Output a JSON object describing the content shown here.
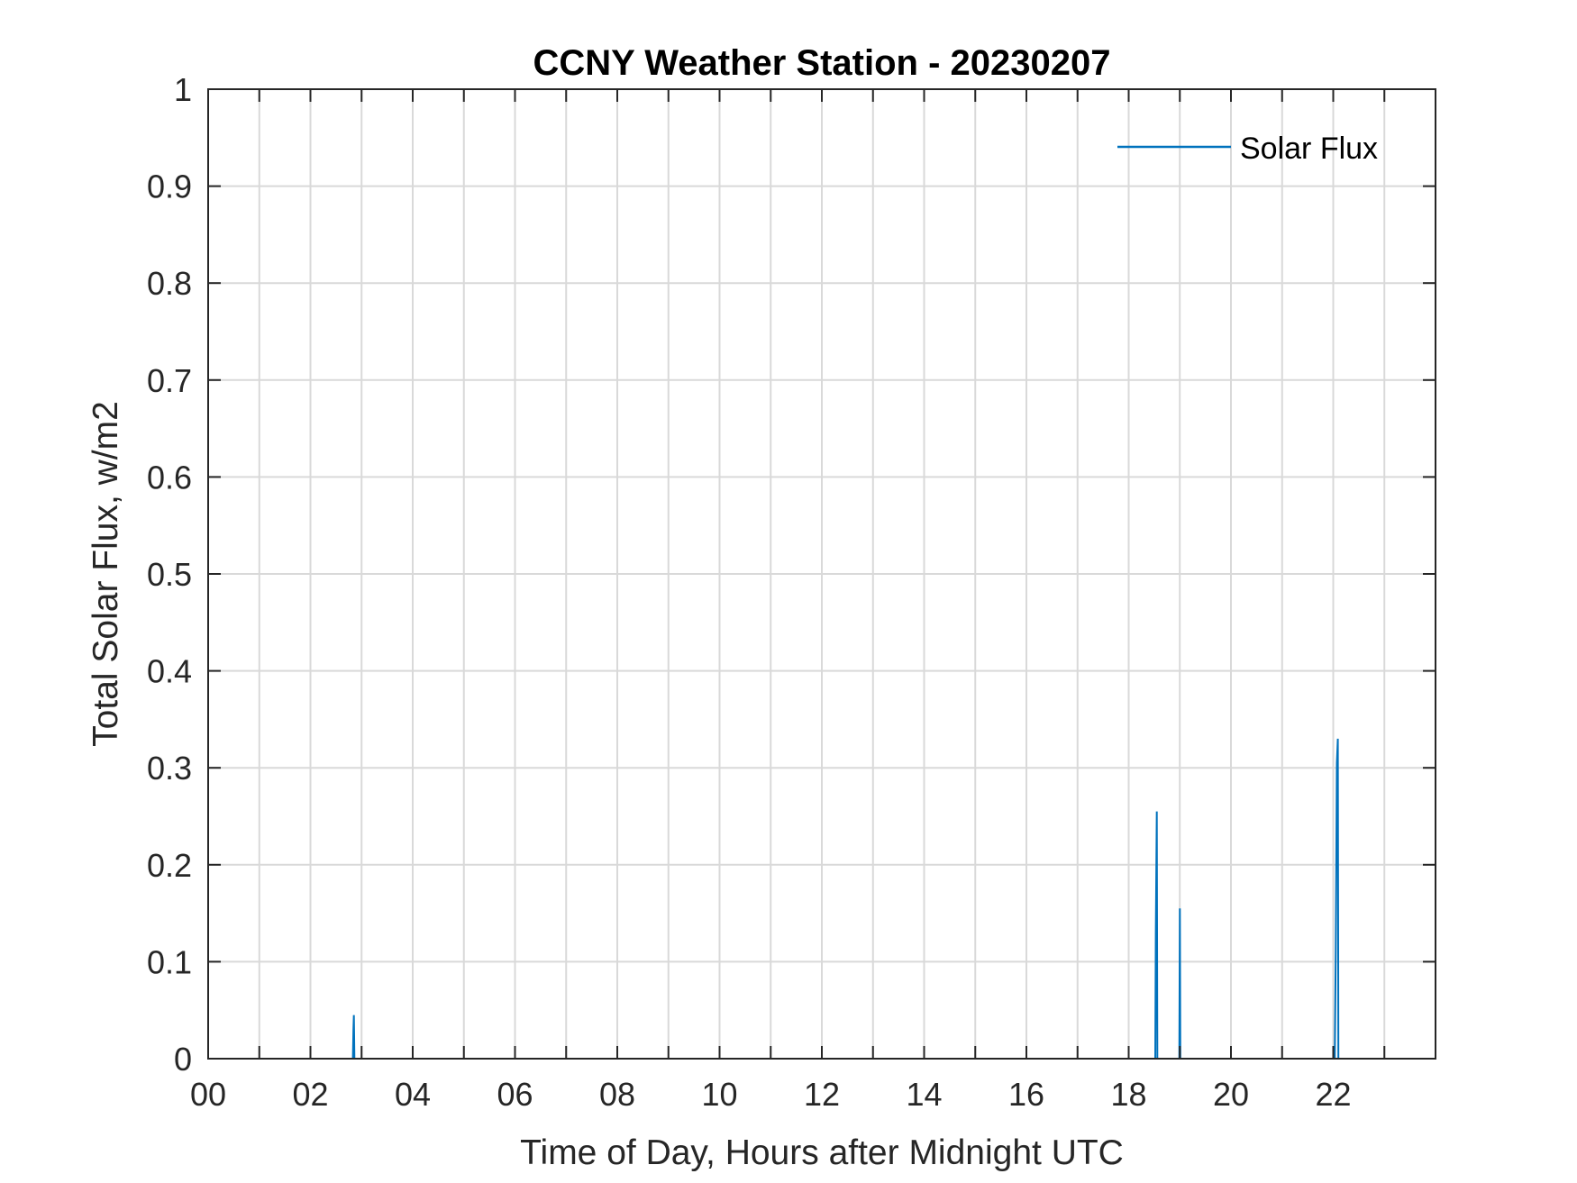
{
  "chart_data": {
    "type": "line",
    "title": "CCNY Weather Station - 20230207",
    "xlabel": "Time of Day, Hours after Midnight UTC",
    "ylabel": "Total Solar Flux, w/m2",
    "xlim": [
      0,
      24
    ],
    "ylim": [
      0,
      1
    ],
    "x_ticks": [
      0,
      2,
      4,
      6,
      8,
      10,
      12,
      14,
      16,
      18,
      20,
      22
    ],
    "x_tick_labels": [
      "00",
      "02",
      "04",
      "06",
      "08",
      "10",
      "12",
      "14",
      "16",
      "18",
      "20",
      "22"
    ],
    "x_minor_ticks": [
      1,
      3,
      5,
      7,
      9,
      11,
      13,
      15,
      17,
      19,
      21,
      23
    ],
    "y_ticks": [
      0,
      0.1,
      0.2,
      0.3,
      0.4,
      0.5,
      0.6,
      0.7,
      0.8,
      0.9,
      1
    ],
    "y_tick_labels": [
      "0",
      "0.1",
      "0.2",
      "0.3",
      "0.4",
      "0.5",
      "0.6",
      "0.7",
      "0.8",
      "0.9",
      "1"
    ],
    "grid": true,
    "legend_position": "top-right",
    "series": [
      {
        "name": "Solar Flux",
        "color": "#0072bd",
        "points": [
          {
            "x": 0,
            "y": 0
          },
          {
            "x": 2.83,
            "y": 0
          },
          {
            "x": 2.84,
            "y": 0.03
          },
          {
            "x": 2.85,
            "y": 0.045
          },
          {
            "x": 2.86,
            "y": 0
          },
          {
            "x": 18.52,
            "y": 0
          },
          {
            "x": 18.53,
            "y": 0.13
          },
          {
            "x": 18.55,
            "y": 0.255
          },
          {
            "x": 18.56,
            "y": 0
          },
          {
            "x": 18.99,
            "y": 0
          },
          {
            "x": 19.0,
            "y": 0.155
          },
          {
            "x": 19.01,
            "y": 0
          },
          {
            "x": 22.03,
            "y": 0
          },
          {
            "x": 22.05,
            "y": 0.11
          },
          {
            "x": 22.07,
            "y": 0.305
          },
          {
            "x": 22.09,
            "y": 0.33
          },
          {
            "x": 22.1,
            "y": 0
          },
          {
            "x": 24,
            "y": 0
          }
        ]
      }
    ]
  }
}
